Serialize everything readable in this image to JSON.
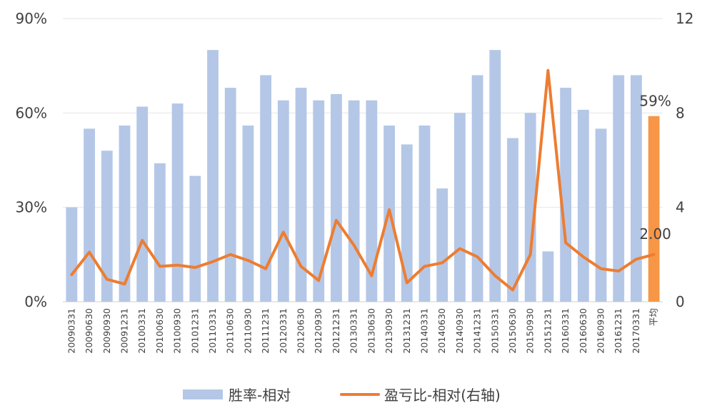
{
  "chart_data": {
    "type": "bar+line",
    "categories": [
      "20090331",
      "20090630",
      "20090930",
      "20091231",
      "20100331",
      "20100630",
      "20100930",
      "20101231",
      "20110331",
      "20110630",
      "20110930",
      "20111231",
      "20120331",
      "20120630",
      "20120930",
      "20121231",
      "20130331",
      "20130630",
      "20130930",
      "20131231",
      "20140331",
      "20140630",
      "20140930",
      "20141231",
      "20150331",
      "20150630",
      "20150930",
      "20151231",
      "20160331",
      "20160630",
      "20160930",
      "20161231",
      "20170331",
      "平均"
    ],
    "series": [
      {
        "name": "胜率-相对",
        "type": "bar",
        "axis": "left",
        "color": "#B4C7E7",
        "average_color": "#F79646",
        "values": [
          30,
          55,
          48,
          56,
          62,
          44,
          63,
          40,
          80,
          68,
          56,
          72,
          64,
          68,
          64,
          66,
          64,
          64,
          56,
          50,
          56,
          36,
          60,
          72,
          80,
          52,
          60,
          16,
          68,
          61,
          55,
          72,
          72,
          59
        ]
      },
      {
        "name": "盈亏比-相对(右轴)",
        "type": "line",
        "axis": "right",
        "color": "#ED7D31",
        "values": [
          1.15,
          2.1,
          0.95,
          0.75,
          2.6,
          1.5,
          1.55,
          1.45,
          1.7,
          2.0,
          1.75,
          1.4,
          2.95,
          1.5,
          0.9,
          3.45,
          2.4,
          1.1,
          3.9,
          0.8,
          1.5,
          1.65,
          2.25,
          1.9,
          1.1,
          0.5,
          2.0,
          9.8,
          2.5,
          1.9,
          1.4,
          1.3,
          1.8,
          2.0
        ]
      }
    ],
    "y_left": {
      "min": 0,
      "max": 90,
      "ticks": [
        "0%",
        "30%",
        "60%",
        "90%"
      ]
    },
    "y_right": {
      "min": 0,
      "max": 12,
      "ticks": [
        "0",
        "4",
        "8",
        "12"
      ]
    },
    "data_labels": {
      "average_bar": "59%",
      "average_line": "2.00"
    },
    "legend": {
      "position": "bottom"
    },
    "grid": true
  }
}
